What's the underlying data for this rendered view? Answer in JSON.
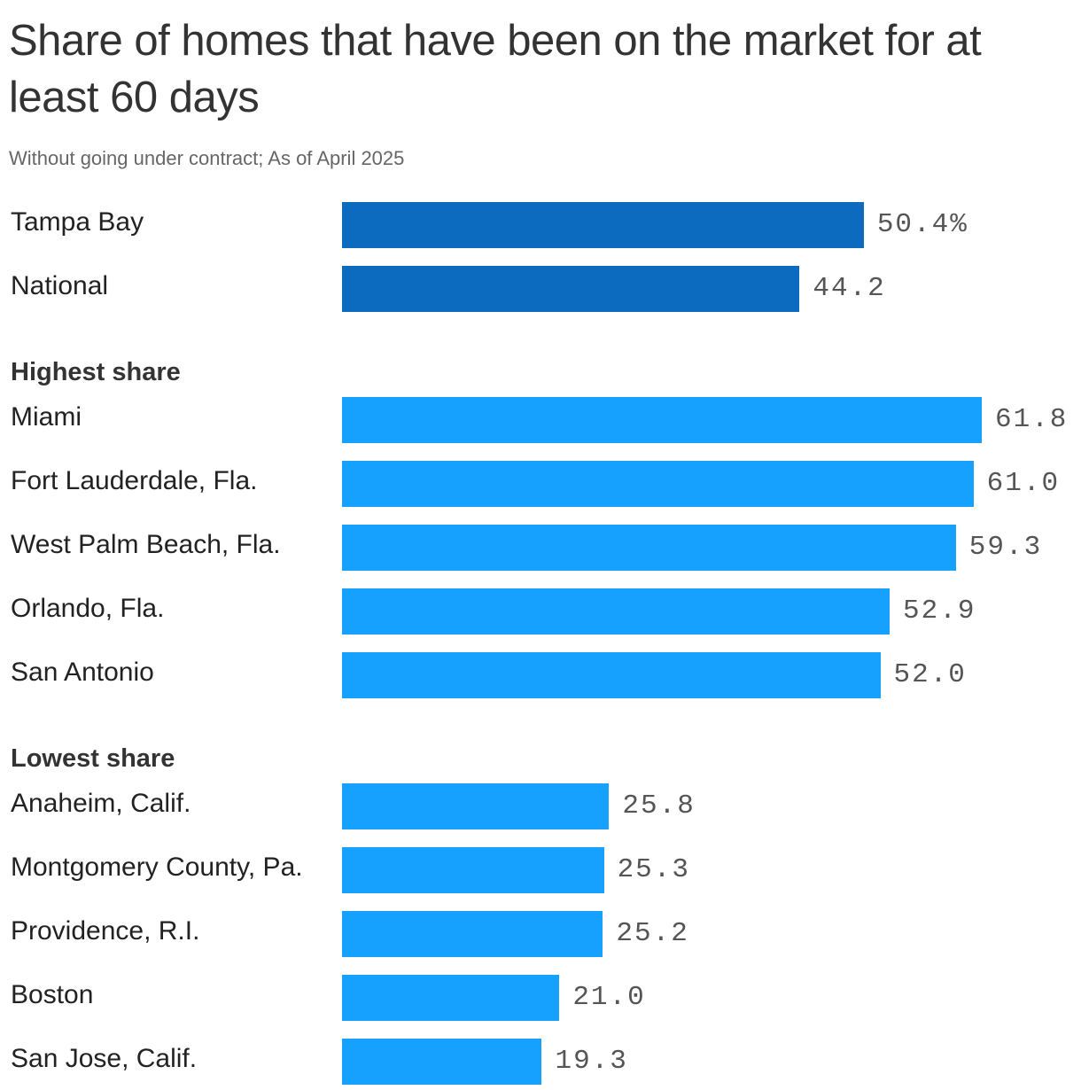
{
  "chart_data": {
    "type": "bar",
    "orientation": "horizontal",
    "title": "Share of homes that have been on the market for at least 60 days",
    "subtitle": "Without going under contract; As of April 2025",
    "colors": {
      "primary": "#0c6abf",
      "secondary": "#16a0ff"
    },
    "groups": [
      {
        "label": "",
        "color_key": "primary",
        "items": [
          {
            "label": "Tampa Bay",
            "value": 50.4,
            "value_label": "50.4%"
          },
          {
            "label": "National",
            "value": 44.2,
            "value_label": "44.2"
          }
        ]
      },
      {
        "label": "Highest share",
        "color_key": "secondary",
        "items": [
          {
            "label": "Miami",
            "value": 61.8,
            "value_label": "61.8"
          },
          {
            "label": "Fort Lauderdale, Fla.",
            "value": 61.0,
            "value_label": "61.0"
          },
          {
            "label": "West Palm Beach, Fla.",
            "value": 59.3,
            "value_label": "59.3"
          },
          {
            "label": "Orlando, Fla.",
            "value": 52.9,
            "value_label": "52.9"
          },
          {
            "label": "San Antonio",
            "value": 52.0,
            "value_label": "52.0"
          }
        ]
      },
      {
        "label": "Lowest share",
        "color_key": "secondary",
        "items": [
          {
            "label": "Anaheim, Calif.",
            "value": 25.8,
            "value_label": "25.8"
          },
          {
            "label": "Montgomery County, Pa.",
            "value": 25.3,
            "value_label": "25.3"
          },
          {
            "label": "Providence, R.I.",
            "value": 25.2,
            "value_label": "25.2"
          },
          {
            "label": "Boston",
            "value": 21.0,
            "value_label": "21.0"
          },
          {
            "label": "San Jose, Calif.",
            "value": 19.3,
            "value_label": "19.3"
          }
        ]
      }
    ],
    "xlim": [
      0,
      61.8
    ]
  }
}
